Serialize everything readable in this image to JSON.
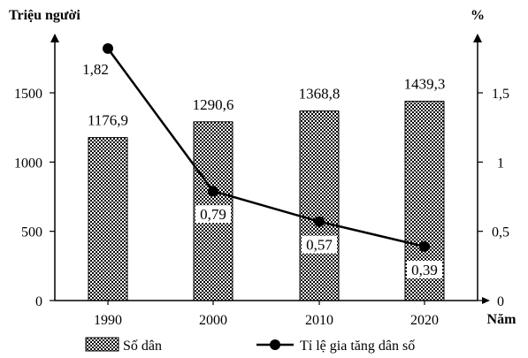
{
  "chart_data": {
    "type": "bar+line",
    "categories": [
      "1990",
      "2000",
      "2010",
      "2020"
    ],
    "series": [
      {
        "name": "Số dân",
        "axis": "left",
        "values": [
          1176.9,
          1290.6,
          1368.8,
          1439.3
        ],
        "labels": [
          "1176,9",
          "1290,6",
          "1368,8",
          "1439,3"
        ]
      },
      {
        "name": "Tỉ lệ gia tăng dân số",
        "axis": "right",
        "values": [
          1.82,
          0.79,
          0.57,
          0.39
        ],
        "labels": [
          "1,82",
          "0,79",
          "0,57",
          "0,39"
        ]
      }
    ],
    "ylabel_left": "Triệu người",
    "ylabel_right": "%",
    "xlabel": "Năm",
    "ylim_left": [
      0,
      1500
    ],
    "yticks_left": [
      "0",
      "500",
      "1000",
      "1500"
    ],
    "ylim_right": [
      0,
      1.5
    ],
    "yticks_right": [
      "0",
      "0,5",
      "1",
      "1,5"
    ],
    "grid": false,
    "legend": "bottom"
  }
}
